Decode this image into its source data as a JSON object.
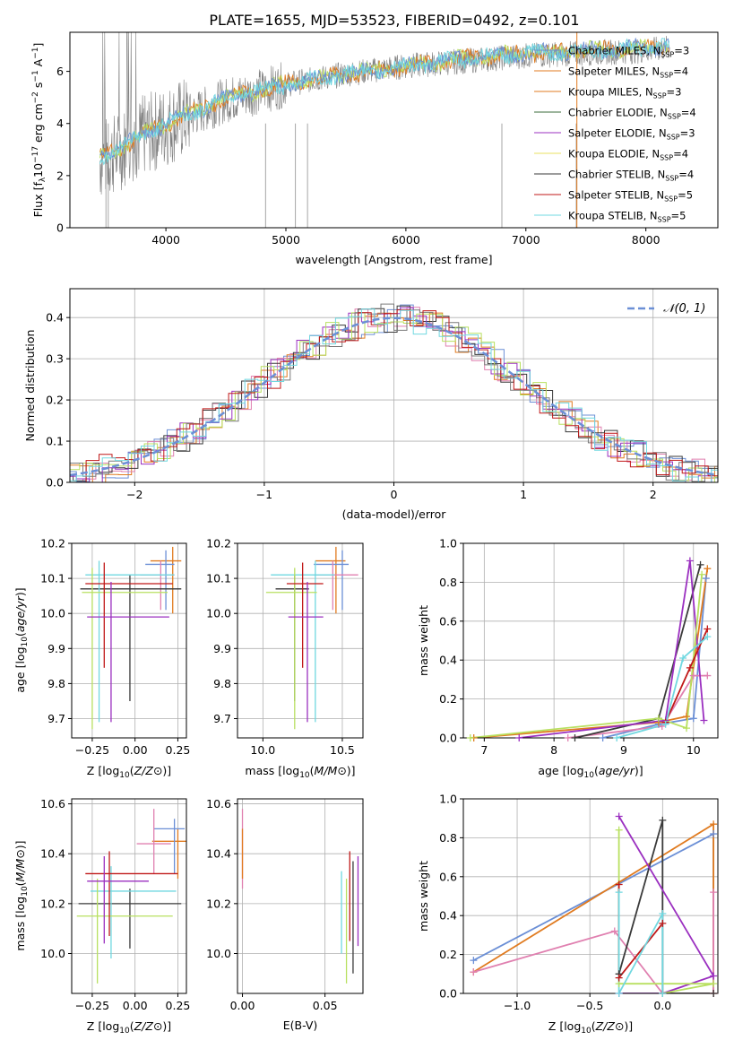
{
  "figure_title": "PLATE=1655, MJD=53523, FIBERID=0492, z=0.101",
  "model_colors": [
    "#6b8fd6",
    "#e07b20",
    "#e080b0",
    "#3a3a3a",
    "#9b30c0",
    "#b8e060",
    "#7a7a7a",
    "#c01818",
    "#70d8e0"
  ],
  "chart_data": [
    {
      "id": "spectrum",
      "type": "line",
      "xlabel": "wavelength [Angstrom, rest frame]",
      "ylabel": "Flux [f",
      "xlim": [
        3200,
        8600
      ],
      "ylim": [
        0,
        7.5
      ],
      "xticks": [
        4000,
        5000,
        6000,
        7000,
        8000
      ],
      "yticks": [
        0,
        2,
        4,
        6
      ],
      "grid": false,
      "legend_position": "right",
      "series": [
        {
          "name": "Chabrier MILES, N",
          "nssp": "=3",
          "color": "#6b8fd6"
        },
        {
          "name": "Salpeter MILES, N",
          "nssp": "=4",
          "color": "#e07b20"
        },
        {
          "name": "Kroupa MILES, N",
          "nssp": "=3",
          "color": "#e07b20"
        },
        {
          "name": "Chabrier ELODIE, N",
          "nssp": "=4",
          "color": "#3a6b3a"
        },
        {
          "name": "Salpeter ELODIE, N",
          "nssp": "=3",
          "color": "#9b30c0"
        },
        {
          "name": "Kroupa ELODIE, N",
          "nssp": "=4",
          "color": "#e8e060"
        },
        {
          "name": "Chabrier STELIB, N",
          "nssp": "=4",
          "color": "#3a3a3a"
        },
        {
          "name": "Salpeter STELIB, N",
          "nssp": "=5",
          "color": "#c01818"
        },
        {
          "name": "Kroupa STELIB, N",
          "nssp": "=5",
          "color": "#70d8e0"
        }
      ],
      "continuum": {
        "x": [
          3450,
          3600,
          3700,
          3900,
          4000,
          4200,
          4500,
          5000,
          5500,
          6000,
          6500,
          7000,
          7500,
          8000,
          8200
        ],
        "y": [
          2.6,
          2.9,
          3.3,
          3.7,
          3.9,
          4.3,
          4.9,
          5.5,
          5.9,
          6.2,
          6.4,
          6.6,
          6.7,
          6.8,
          6.9
        ]
      },
      "model_continuum": {
        "x": [
          3450,
          3600,
          3700,
          3900,
          4000,
          4200,
          4500,
          5000,
          5500,
          6000,
          6500,
          7000,
          7500,
          8000,
          8200
        ],
        "y": [
          2.7,
          3.0,
          3.3,
          3.8,
          4.0,
          4.4,
          5.0,
          5.5,
          5.9,
          6.2,
          6.5,
          6.7,
          6.8,
          6.9,
          7.0
        ]
      }
    },
    {
      "id": "residuals",
      "type": "line",
      "xlabel": "(data-model)/error",
      "ylabel": "Normed distribution",
      "xlim": [
        -2.5,
        2.5
      ],
      "ylim": [
        0,
        0.47
      ],
      "xticks": [
        -2,
        -1,
        0,
        1,
        2
      ],
      "yticks": [
        0.0,
        0.1,
        0.2,
        0.3,
        0.4
      ],
      "grid": true,
      "legend_position": "top-right",
      "legend_label": "𝒩(0, 1)",
      "gaussian_color": "#6b8fd6"
    },
    {
      "id": "age-vs-Z",
      "type": "scatter",
      "xlabel": "Z [log",
      "ylabel": "age  [log",
      "xlim": [
        -0.37,
        0.3
      ],
      "ylim": [
        9.645,
        10.2
      ],
      "xticks": [
        -0.25,
        0.0,
        0.25
      ],
      "yticks": [
        9.7,
        9.8,
        9.9,
        10.0,
        10.1,
        10.2
      ],
      "grid": true,
      "points": [
        {
          "x": 0.22,
          "y": 10.15,
          "xerr": [
            0.13,
            0.05
          ],
          "yerr": [
            0.15,
            0.04
          ],
          "c": "#e07b20"
        },
        {
          "x": 0.18,
          "y": 10.14,
          "xerr": [
            0.12,
            0.05
          ],
          "yerr": [
            0.13,
            0.04
          ],
          "c": "#6b8fd6"
        },
        {
          "x": 0.15,
          "y": 10.11,
          "xerr": [
            0.12,
            0.08
          ],
          "yerr": [
            0.1,
            0.04
          ],
          "c": "#e080b0"
        },
        {
          "x": -0.03,
          "y": 10.07,
          "xerr": [
            0.29,
            0.3
          ],
          "yerr": [
            0.32,
            0.04
          ],
          "c": "#3a3a3a"
        },
        {
          "x": -0.21,
          "y": 10.11,
          "xerr": [
            0.08,
            0.44
          ],
          "yerr": [
            0.42,
            0.04
          ],
          "c": "#70d8e0"
        },
        {
          "x": -0.25,
          "y": 10.06,
          "xerr": [
            0.06,
            0.44
          ],
          "yerr": [
            0.39,
            0.07
          ],
          "c": "#b8e060"
        },
        {
          "x": -0.18,
          "y": 10.085,
          "xerr": [
            0.11,
            0.4
          ],
          "yerr": [
            0.24,
            0.06
          ],
          "c": "#c01818"
        },
        {
          "x": -0.14,
          "y": 9.99,
          "xerr": [
            0.14,
            0.34
          ],
          "yerr": [
            0.3,
            0.1
          ],
          "c": "#9b30c0"
        }
      ]
    },
    {
      "id": "age-vs-mass",
      "type": "scatter",
      "xlabel": "mass [log",
      "ylabel": "",
      "xlim": [
        9.84,
        10.63
      ],
      "ylim": [
        9.645,
        10.2
      ],
      "xticks": [
        10.0,
        10.5
      ],
      "yticks": [
        9.7,
        9.8,
        9.9,
        10.0,
        10.1,
        10.2
      ],
      "grid": true,
      "points": [
        {
          "x": 10.46,
          "y": 10.15,
          "xerr": [
            0.13,
            0.06
          ],
          "yerr": [
            0.15,
            0.04
          ],
          "c": "#e07b20"
        },
        {
          "x": 10.5,
          "y": 10.14,
          "xerr": [
            0.18,
            0.04
          ],
          "yerr": [
            0.13,
            0.04
          ],
          "c": "#6b8fd6"
        },
        {
          "x": 10.44,
          "y": 10.11,
          "xerr": [
            0.12,
            0.16
          ],
          "yerr": [
            0.1,
            0.04
          ],
          "c": "#e080b0"
        },
        {
          "x": 10.2,
          "y": 10.07,
          "xerr": [
            0.12,
            0.09
          ],
          "yerr": [
            0.32,
            0.04
          ],
          "c": "#3a3a3a"
        },
        {
          "x": 10.33,
          "y": 10.11,
          "xerr": [
            0.28,
            0.12
          ],
          "yerr": [
            0.42,
            0.04
          ],
          "c": "#70d8e0"
        },
        {
          "x": 10.2,
          "y": 10.06,
          "xerr": [
            0.18,
            0.14
          ],
          "yerr": [
            0.39,
            0.07
          ],
          "c": "#b8e060"
        },
        {
          "x": 10.25,
          "y": 10.085,
          "xerr": [
            0.1,
            0.13
          ],
          "yerr": [
            0.24,
            0.06
          ],
          "c": "#c01818"
        },
        {
          "x": 10.28,
          "y": 9.99,
          "xerr": [
            0.12,
            0.1
          ],
          "yerr": [
            0.3,
            0.1
          ],
          "c": "#9b30c0"
        }
      ]
    },
    {
      "id": "weight-vs-age",
      "type": "line",
      "xlabel": "age  [log",
      "ylabel": "mass weight",
      "xlim": [
        6.7,
        10.35
      ],
      "ylim": [
        0,
        1
      ],
      "xticks": [
        7,
        8,
        9,
        10
      ],
      "yticks": [
        0.0,
        0.2,
        0.4,
        0.6,
        0.8,
        1.0
      ],
      "grid": true,
      "series": [
        {
          "c": "#6b8fd6",
          "x": [
            8.7,
            9.5,
            10.0,
            10.18
          ],
          "y": [
            0.0,
            0.07,
            0.1,
            0.82
          ]
        },
        {
          "c": "#e07b20",
          "x": [
            6.85,
            9.5,
            9.9,
            10.2
          ],
          "y": [
            0.0,
            0.08,
            0.11,
            0.87
          ]
        },
        {
          "c": "#e080b0",
          "x": [
            8.2,
            9.55,
            10.0,
            10.2
          ],
          "y": [
            0.0,
            0.06,
            0.32,
            0.32
          ]
        },
        {
          "c": "#3a3a3a",
          "x": [
            8.3,
            9.5,
            10.1
          ],
          "y": [
            0.0,
            0.1,
            0.89
          ]
        },
        {
          "c": "#9b30c0",
          "x": [
            7.5,
            9.6,
            9.95,
            10.15
          ],
          "y": [
            0.0,
            0.09,
            0.91,
            0.09
          ]
        },
        {
          "c": "#b8e060",
          "x": [
            6.8,
            9.5,
            9.9,
            10.12
          ],
          "y": [
            0.0,
            0.1,
            0.05,
            0.84
          ]
        },
        {
          "c": "#c01818",
          "x": [
            9.6,
            9.95,
            10.2
          ],
          "y": [
            0.08,
            0.36,
            0.56
          ]
        },
        {
          "c": "#70d8e0",
          "x": [
            8.9,
            9.6,
            9.85,
            10.2
          ],
          "y": [
            0.0,
            0.07,
            0.41,
            0.52
          ]
        }
      ]
    },
    {
      "id": "mass-vs-Z",
      "type": "scatter",
      "xlabel": "Z [log",
      "ylabel": "mass [log",
      "xlim": [
        -0.37,
        0.3
      ],
      "ylim": [
        9.84,
        10.62
      ],
      "xticks": [
        -0.25,
        0.0,
        0.25
      ],
      "yticks": [
        10.0,
        10.2,
        10.4,
        10.6
      ],
      "grid": true,
      "points": [
        {
          "x": 0.25,
          "y": 10.45,
          "xerr": [
            0.15,
            0.05
          ],
          "yerr": [
            0.15,
            0.05
          ],
          "c": "#e07b20"
        },
        {
          "x": 0.23,
          "y": 10.5,
          "xerr": [
            0.12,
            0.06
          ],
          "yerr": [
            0.18,
            0.04
          ],
          "c": "#6b8fd6"
        },
        {
          "x": 0.11,
          "y": 10.44,
          "xerr": [
            0.1,
            0.1
          ],
          "yerr": [
            0.12,
            0.14
          ],
          "c": "#e080b0"
        },
        {
          "x": -0.03,
          "y": 10.2,
          "xerr": [
            0.3,
            0.3
          ],
          "yerr": [
            0.18,
            0.06
          ],
          "c": "#3a3a3a"
        },
        {
          "x": -0.14,
          "y": 10.25,
          "xerr": [
            0.12,
            0.38
          ],
          "yerr": [
            0.27,
            0.1
          ],
          "c": "#70d8e0"
        },
        {
          "x": -0.22,
          "y": 10.15,
          "xerr": [
            0.12,
            0.44
          ],
          "yerr": [
            0.27,
            0.15
          ],
          "c": "#b8e060"
        },
        {
          "x": -0.15,
          "y": 10.32,
          "xerr": [
            0.14,
            0.4
          ],
          "yerr": [
            0.25,
            0.09
          ],
          "c": "#c01818"
        },
        {
          "x": -0.18,
          "y": 10.29,
          "xerr": [
            0.1,
            0.26
          ],
          "yerr": [
            0.25,
            0.1
          ],
          "c": "#9b30c0"
        }
      ]
    },
    {
      "id": "mass-vs-ebv",
      "type": "scatter",
      "xlabel": "E(B-V)",
      "ylabel": "",
      "xlim": [
        -0.003,
        0.073
      ],
      "ylim": [
        9.84,
        10.62
      ],
      "xticks": [
        0.0,
        0.05
      ],
      "yticks": [
        10.0,
        10.2,
        10.4,
        10.6
      ],
      "grid": true,
      "vlines": [
        {
          "x": 0.0,
          "y0": 10.26,
          "y1": 10.58,
          "c": "#e080b0"
        },
        {
          "x": 0.0,
          "y0": 10.3,
          "y1": 10.5,
          "c": "#e07b20"
        },
        {
          "x": 0.06,
          "y0": 10.0,
          "y1": 10.33,
          "c": "#70d8e0"
        },
        {
          "x": 0.063,
          "y0": 9.88,
          "y1": 10.3,
          "c": "#b8e060"
        },
        {
          "x": 0.065,
          "y0": 10.05,
          "y1": 10.41,
          "c": "#c01818"
        },
        {
          "x": 0.067,
          "y0": 9.92,
          "y1": 10.37,
          "c": "#3a3a3a"
        },
        {
          "x": 0.07,
          "y0": 10.03,
          "y1": 10.39,
          "c": "#9b30c0"
        }
      ]
    },
    {
      "id": "weight-vs-Z",
      "type": "line",
      "xlabel": "Z [log",
      "ylabel": "mass weight",
      "xlim": [
        -1.37,
        0.38
      ],
      "ylim": [
        0,
        1
      ],
      "xticks": [
        -1.0,
        -0.5,
        0.0
      ],
      "yticks": [
        0.0,
        0.2,
        0.4,
        0.6,
        0.8,
        1.0
      ],
      "grid": true,
      "series": [
        {
          "c": "#6b8fd6",
          "x": [
            -1.3,
            0.35,
            0.35
          ],
          "y": [
            0.17,
            0.82,
            0.0
          ]
        },
        {
          "c": "#e07b20",
          "x": [
            -1.3,
            0.35,
            0.35
          ],
          "y": [
            0.11,
            0.87,
            0.0
          ]
        },
        {
          "c": "#e080b0",
          "x": [
            -1.3,
            -0.33,
            0.0,
            0.35,
            0.35
          ],
          "y": [
            0.11,
            0.32,
            0.0,
            0.0,
            0.52
          ]
        },
        {
          "c": "#3a3a3a",
          "x": [
            -0.3,
            0.0,
            0.0,
            0.35
          ],
          "y": [
            0.1,
            0.89,
            0.0,
            0.0
          ]
        },
        {
          "c": "#9b30c0",
          "x": [
            -0.3,
            0.35,
            0.0,
            -0.3
          ],
          "y": [
            0.91,
            0.09,
            0.0,
            0.0
          ]
        },
        {
          "c": "#b8e060",
          "x": [
            -0.3,
            -0.3,
            0.35,
            0.0
          ],
          "y": [
            0.84,
            0.05,
            0.05,
            0.0
          ]
        },
        {
          "c": "#c01818",
          "x": [
            -0.3,
            -0.3,
            0.0
          ],
          "y": [
            0.56,
            0.08,
            0.36
          ]
        },
        {
          "c": "#70d8e0",
          "x": [
            -0.3,
            -0.3,
            0.0,
            0.0
          ],
          "y": [
            0.52,
            0.0,
            0.41,
            0.0
          ]
        }
      ]
    }
  ]
}
